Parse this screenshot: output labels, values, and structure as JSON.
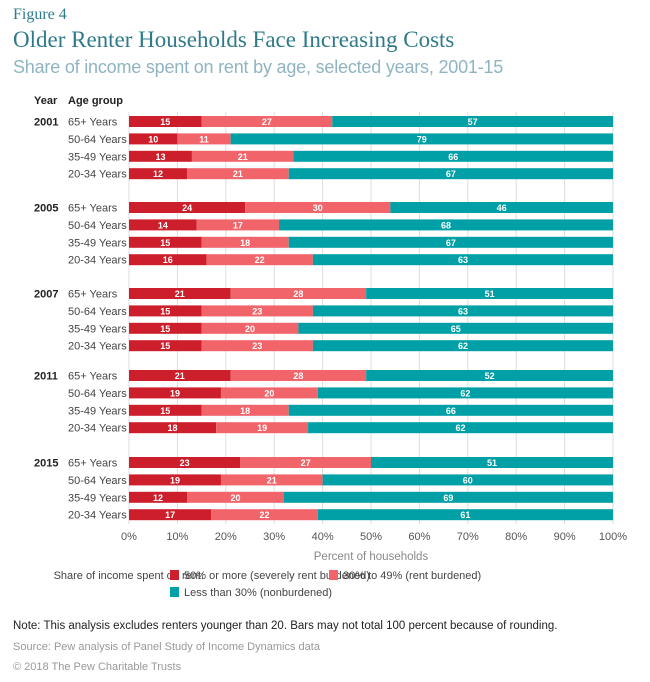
{
  "figure_label": "Figure 4",
  "title": "Older Renter Households Face Increasing Costs",
  "subtitle": "Share of income spent on rent by age, selected years, 2001-15",
  "note": "Note: This analysis excludes renters younger than 20. Bars may not total 100 percent because of rounding.",
  "source": "Source: Pew analysis of Panel Study of Income Dynamics data",
  "copyright": "© 2018 The Pew Charitable Trusts",
  "colors": {
    "severe": "#cc1f2b",
    "burdened": "#f0646a",
    "nonburdened": "#00a0a6",
    "title": "#2e7a8a",
    "subtitle": "#8fb4c2"
  },
  "chart_data": {
    "type": "bar",
    "orientation": "horizontal-stacked",
    "title": "Older Renter Households Face Increasing Costs",
    "xlabel": "Percent of households",
    "ylabel_headers": [
      "Year",
      "Age group"
    ],
    "xlim": [
      0,
      100
    ],
    "x_ticks": [
      "0%",
      "10%",
      "20%",
      "30%",
      "40%",
      "50%",
      "60%",
      "70%",
      "80%",
      "90%",
      "100%"
    ],
    "grid": true,
    "legend_title": "Share of income spent on rent:",
    "legend_position": "bottom",
    "series": [
      {
        "key": "severe",
        "name": "50% or more (severely rent burdened)"
      },
      {
        "key": "burdened",
        "name": "30% to 49% (rent burdened)"
      },
      {
        "key": "nonburdened",
        "name": "Less than 30% (nonburdened)"
      }
    ],
    "groups": [
      {
        "year": "2001",
        "rows": [
          {
            "age": "65+ Years",
            "values": [
              15,
              27,
              57
            ]
          },
          {
            "age": "50-64 Years",
            "values": [
              10,
              11,
              79
            ]
          },
          {
            "age": "35-49 Years",
            "values": [
              13,
              21,
              66
            ]
          },
          {
            "age": "20-34 Years",
            "values": [
              12,
              21,
              67
            ]
          }
        ]
      },
      {
        "year": "2005",
        "rows": [
          {
            "age": "65+ Years",
            "values": [
              24,
              30,
              46
            ]
          },
          {
            "age": "50-64 Years",
            "values": [
              14,
              17,
              68
            ]
          },
          {
            "age": "35-49 Years",
            "values": [
              15,
              18,
              67
            ]
          },
          {
            "age": "20-34 Years",
            "values": [
              16,
              22,
              63
            ]
          }
        ]
      },
      {
        "year": "2007",
        "rows": [
          {
            "age": "65+ Years",
            "values": [
              21,
              28,
              51
            ]
          },
          {
            "age": "50-64 Years",
            "values": [
              15,
              23,
              63
            ]
          },
          {
            "age": "35-49 Years",
            "values": [
              15,
              20,
              65
            ]
          },
          {
            "age": "20-34 Years",
            "values": [
              15,
              23,
              62
            ]
          }
        ]
      },
      {
        "year": "2011",
        "rows": [
          {
            "age": "65+ Years",
            "values": [
              21,
              28,
              52
            ]
          },
          {
            "age": "50-64 Years",
            "values": [
              19,
              20,
              62
            ]
          },
          {
            "age": "35-49 Years",
            "values": [
              15,
              18,
              66
            ]
          },
          {
            "age": "20-34 Years",
            "values": [
              18,
              19,
              62
            ]
          }
        ]
      },
      {
        "year": "2015",
        "rows": [
          {
            "age": "65+ Years",
            "values": [
              23,
              27,
              51
            ]
          },
          {
            "age": "50-64 Years",
            "values": [
              19,
              21,
              60
            ]
          },
          {
            "age": "35-49 Years",
            "values": [
              12,
              20,
              69
            ]
          },
          {
            "age": "20-34 Years",
            "values": [
              17,
              22,
              61
            ]
          }
        ]
      }
    ]
  }
}
